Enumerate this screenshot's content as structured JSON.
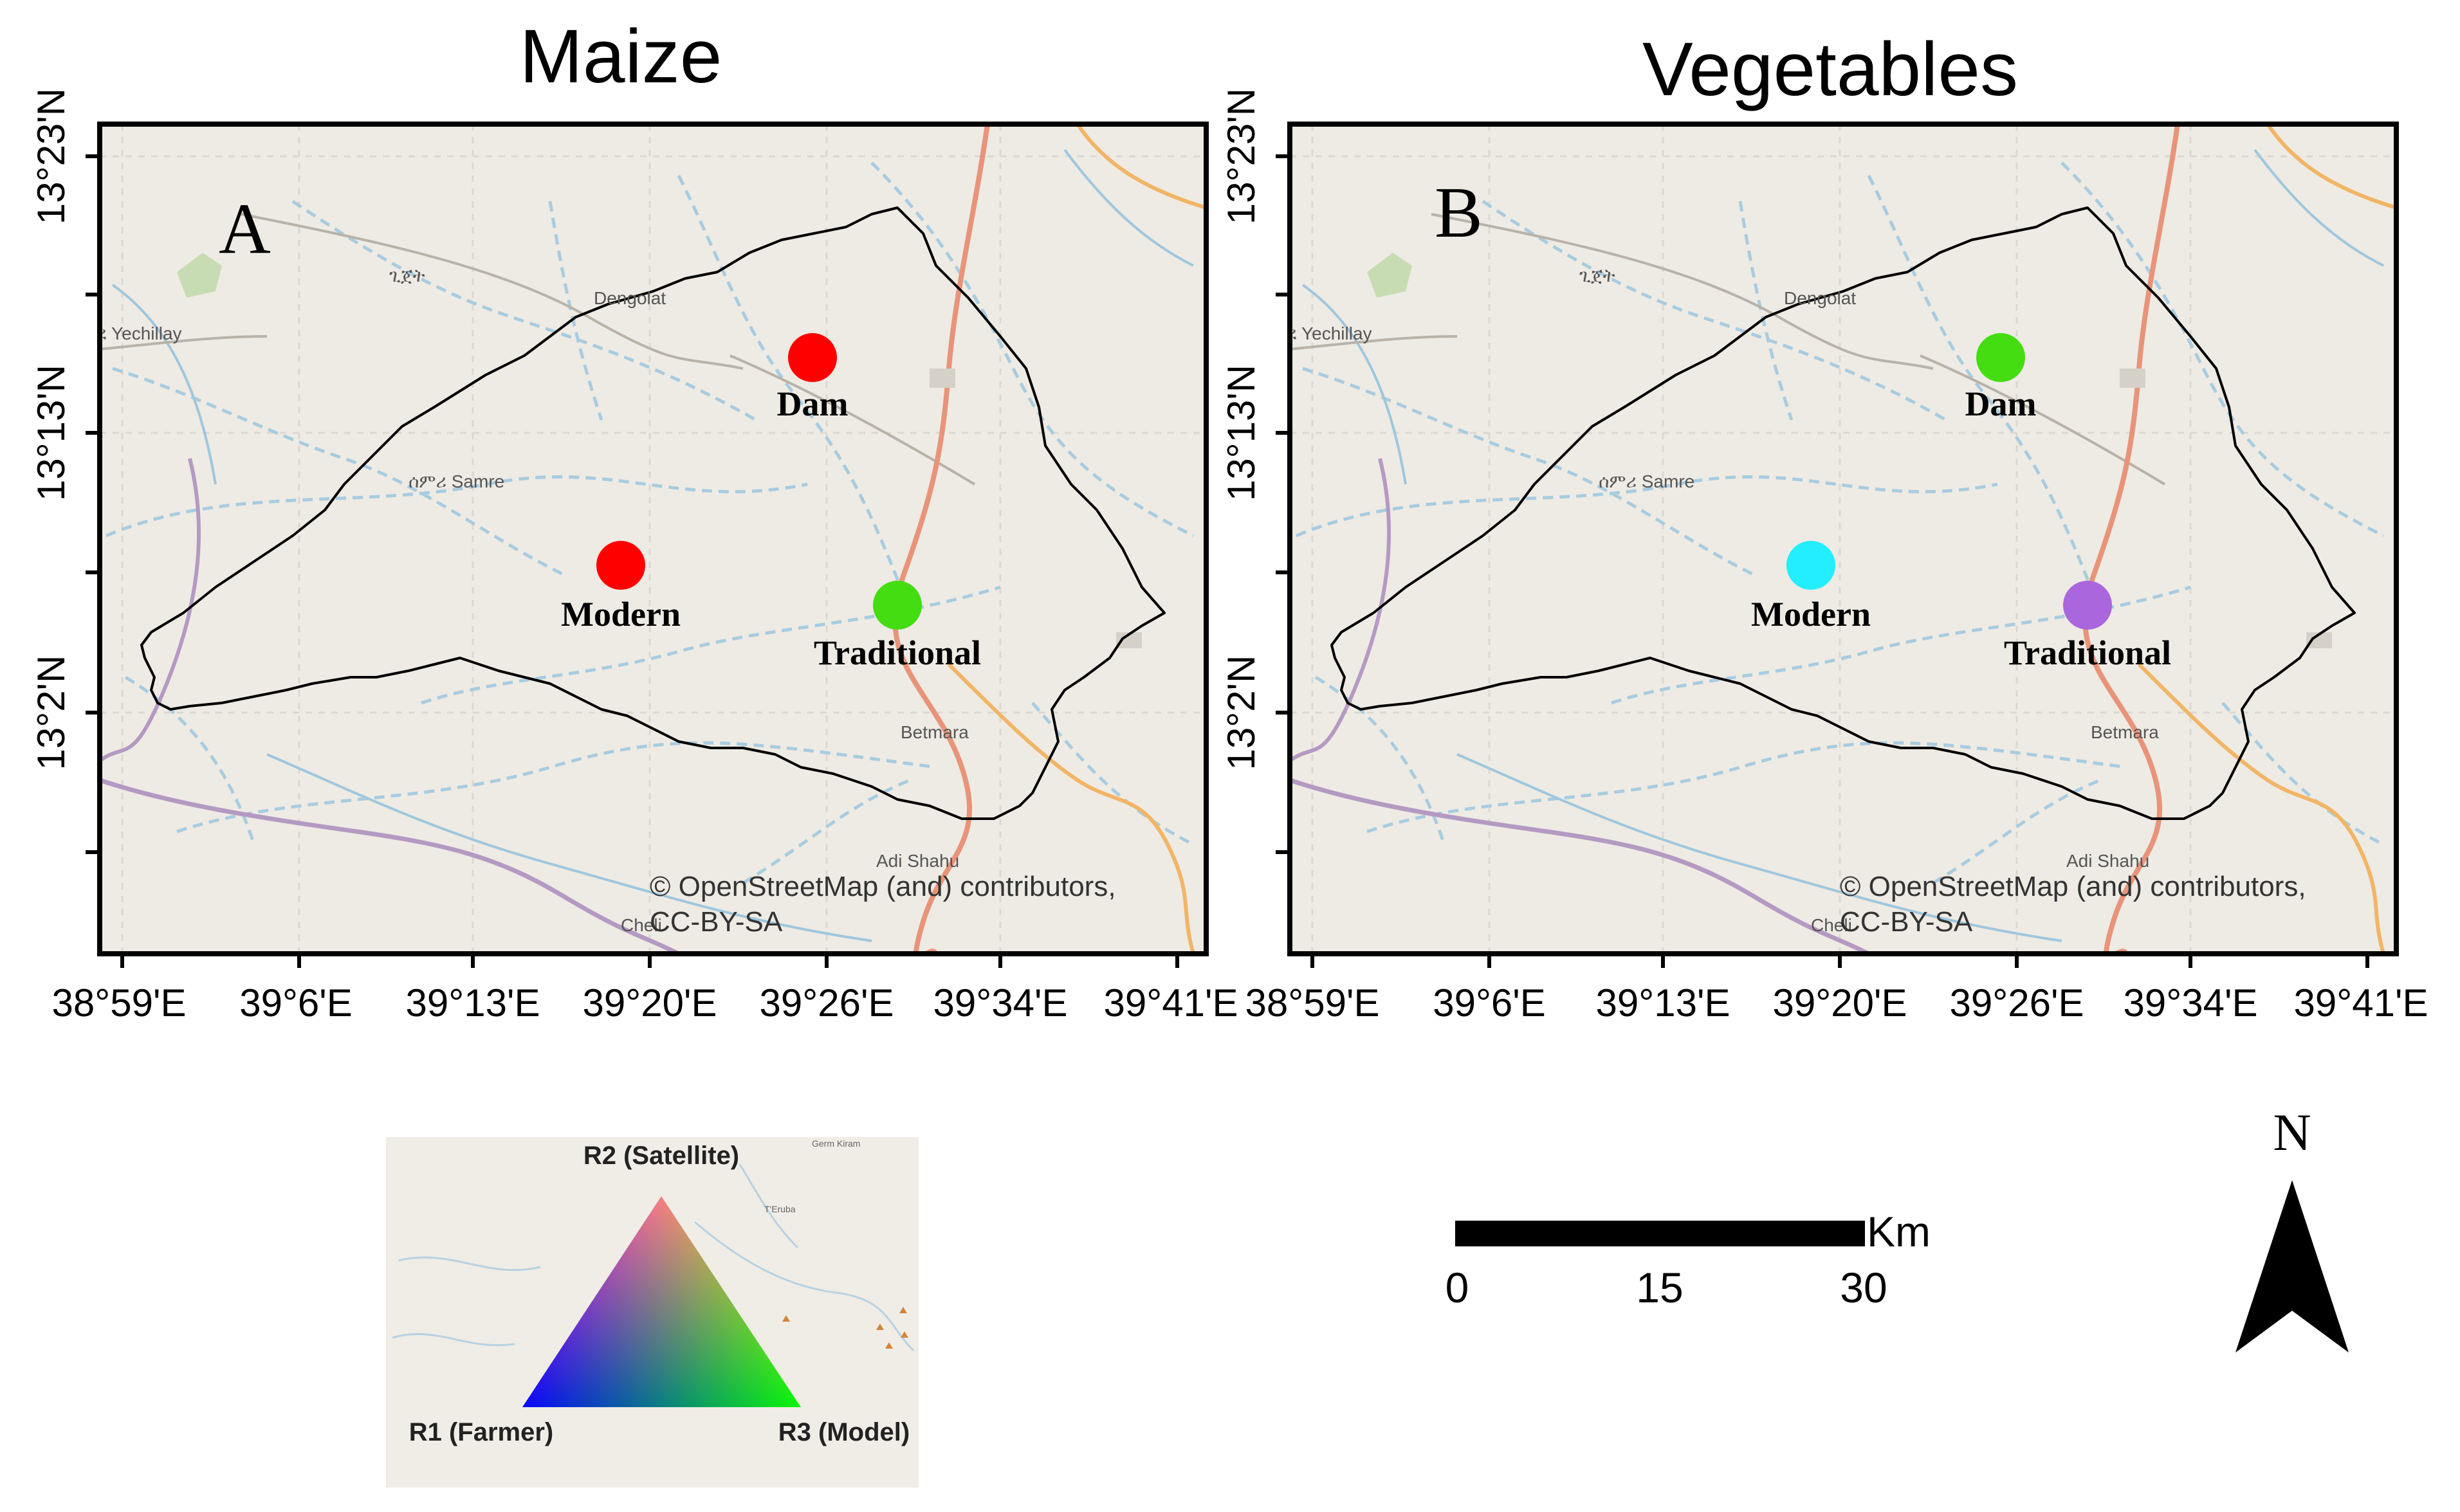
{
  "figure": {
    "panels": [
      {
        "title": "Maize",
        "letter": "A",
        "sites": [
          {
            "name": "Dam",
            "color": "#ff0000"
          },
          {
            "name": "Modern",
            "color": "#ff0000"
          },
          {
            "name": "Traditional",
            "color": "#44dd11"
          }
        ]
      },
      {
        "title": "Vegetables",
        "letter": "B",
        "sites": [
          {
            "name": "Dam",
            "color": "#44dd11"
          },
          {
            "name": "Modern",
            "color": "#22eeff"
          },
          {
            "name": "Traditional",
            "color": "#aa66dd"
          }
        ]
      }
    ],
    "x_ticks": [
      "38°59'E",
      "39°6'E",
      "39°13'E",
      "39°20'E",
      "39°26'E",
      "39°34'E",
      "39°41'E"
    ],
    "y_ticks": [
      "13°23'N",
      "13°13'N",
      "13°2'N"
    ],
    "places": [
      "Dengolat",
      "ጊጀት",
      "ሰምሪ Samre",
      "ደ Yechillay",
      "Betmara",
      "Adi Shahu",
      "Cheli"
    ],
    "credit_line1": "© OpenStreetMap (and) contributors,",
    "credit_line2": "CC-BY-SA",
    "legend": {
      "top": "R2 (Satellite)",
      "left": "R1 (Farmer)",
      "right": "R3 (Model)",
      "places": [
        "Germ Kiram",
        "T'Eruba"
      ],
      "colors": {
        "r1": "#0000ff",
        "r2": "#ff0000",
        "r3": "#00ff00"
      }
    },
    "scale": {
      "unit": "Km",
      "labels": [
        "0",
        "15",
        "30"
      ]
    },
    "north_label": "N"
  }
}
